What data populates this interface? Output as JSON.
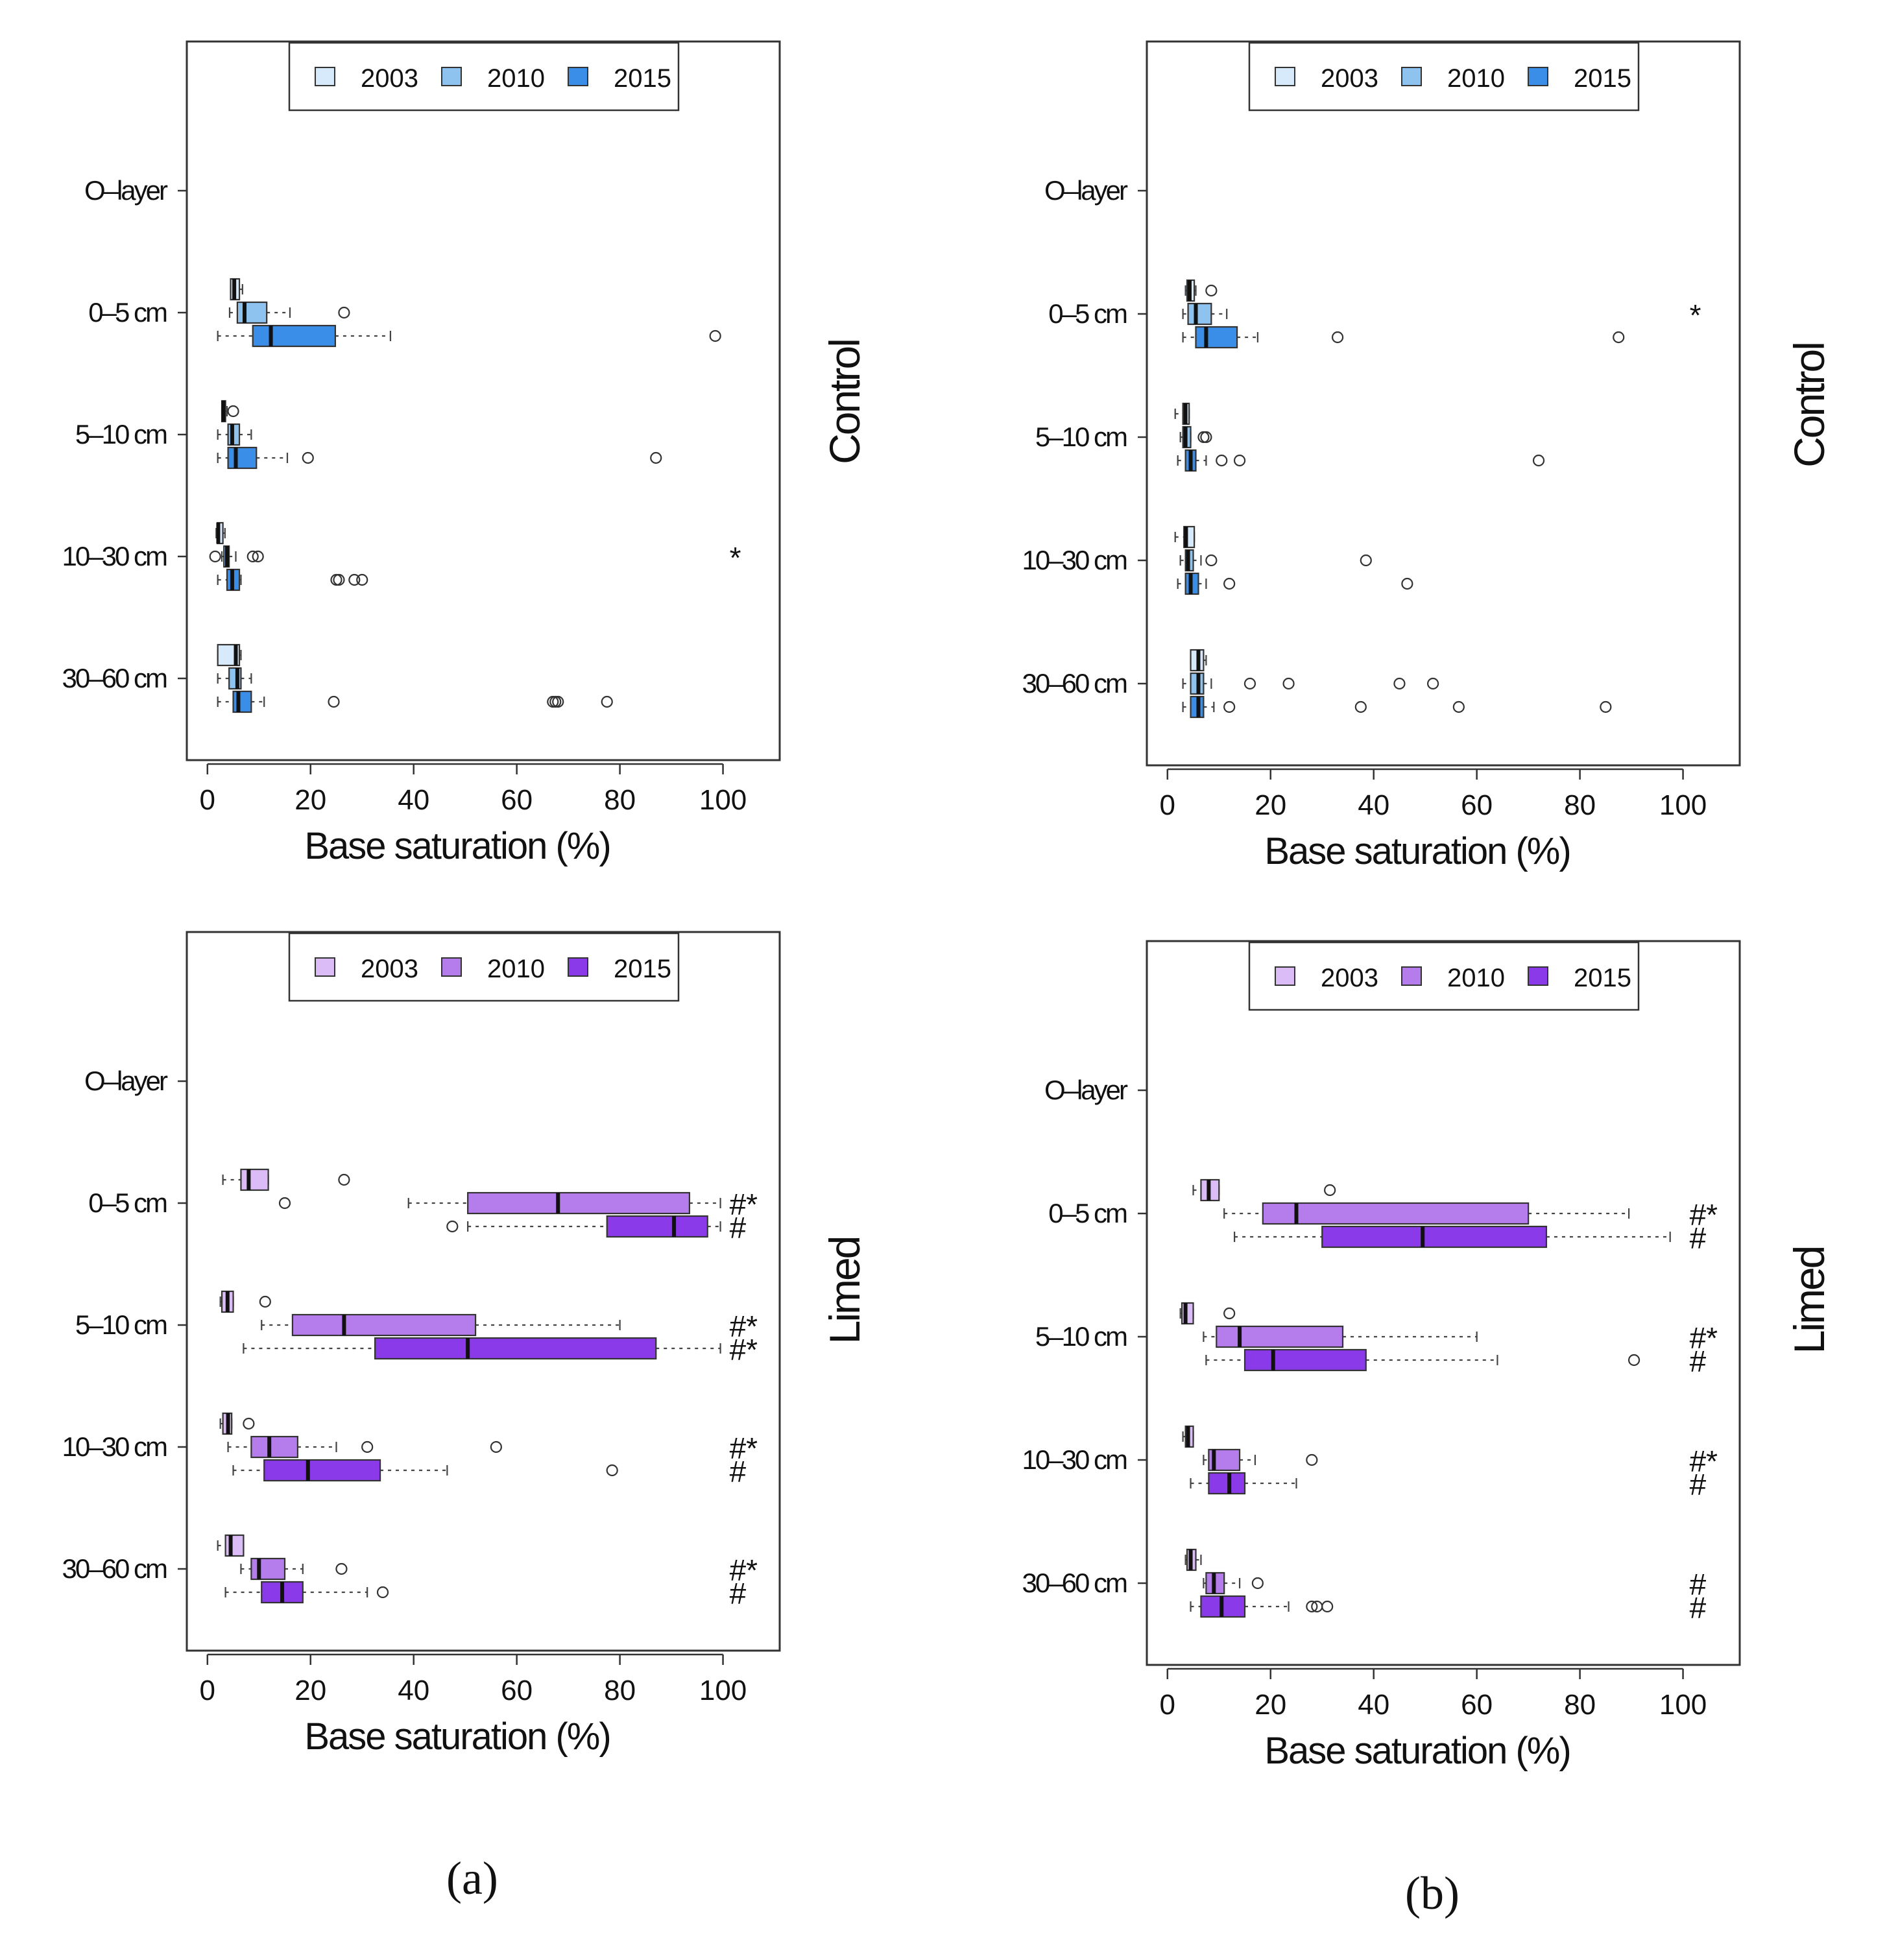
{
  "figure": {
    "panel_labels": [
      "(a)",
      "(b)"
    ],
    "colors": {
      "control": [
        "#d6eafb",
        "#8ec3f0",
        "#3b8ee8"
      ],
      "limed": [
        "#dcbcf6",
        "#b57cec",
        "#8a3ae8"
      ],
      "outline": "#333333"
    }
  },
  "chart_data": [
    {
      "type": "boxplot",
      "panel": "a",
      "treatment": "Control",
      "xlabel": "Base saturation (%)",
      "xlim": [
        -4,
        111
      ],
      "xticks": [
        "0",
        "20",
        "40",
        "60",
        "80",
        "100"
      ],
      "legend_position": "top",
      "series_names": [
        "2003",
        "2010",
        "2015"
      ],
      "categories": [
        "O–layer",
        "0–5 cm",
        "5–10 cm",
        "10–30 cm",
        "30–60 cm"
      ],
      "boxes": [
        {
          "category": "0–5 cm",
          "year": "2003",
          "whisker_low": 4.5,
          "q1": 4.5,
          "median": 5.2,
          "q3": 6.2,
          "whisker_high": 6.8,
          "outliers": []
        },
        {
          "category": "0–5 cm",
          "year": "2010",
          "whisker_low": 4.3,
          "q1": 5.8,
          "median": 7.2,
          "q3": 11.5,
          "whisker_high": 16,
          "outliers": [
            26.5
          ]
        },
        {
          "category": "0–5 cm",
          "year": "2015",
          "whisker_low": 2,
          "q1": 8.8,
          "median": 12.3,
          "q3": 24.8,
          "whisker_high": 35.5,
          "outliers": [
            98.5
          ]
        },
        {
          "category": "5–10 cm",
          "year": "2003",
          "whisker_low": 2.8,
          "q1": 2.8,
          "median": 3.1,
          "q3": 3.5,
          "whisker_high": 3.8,
          "outliers": [
            5
          ]
        },
        {
          "category": "5–10 cm",
          "year": "2010",
          "whisker_low": 2,
          "q1": 4,
          "median": 4.8,
          "q3": 6.2,
          "whisker_high": 8.5,
          "outliers": []
        },
        {
          "category": "5–10 cm",
          "year": "2015",
          "whisker_low": 2,
          "q1": 4,
          "median": 5.5,
          "q3": 9.5,
          "whisker_high": 15.5,
          "outliers": [
            19.5,
            87
          ]
        },
        {
          "category": "10–30 cm",
          "year": "2003",
          "whisker_low": 1.7,
          "q1": 1.9,
          "median": 2.1,
          "q3": 3,
          "whisker_high": 3.4,
          "outliers": []
        },
        {
          "category": "10–30 cm",
          "year": "2010",
          "whisker_low": 2.8,
          "q1": 3.2,
          "median": 3.8,
          "q3": 4.2,
          "whisker_high": 5.5,
          "outliers": [
            1.5,
            8.8,
            9.8
          ]
        },
        {
          "category": "10–30 cm",
          "year": "2015",
          "whisker_low": 2,
          "q1": 3.8,
          "median": 4.8,
          "q3": 6.2,
          "whisker_high": 6.5,
          "outliers": [
            25,
            25.5,
            28.5,
            30
          ]
        },
        {
          "category": "30–60 cm",
          "year": "2003",
          "whisker_low": 2,
          "q1": 2,
          "median": 5.5,
          "q3": 6.2,
          "whisker_high": 6.5,
          "outliers": []
        },
        {
          "category": "30–60 cm",
          "year": "2010",
          "whisker_low": 2,
          "q1": 4.2,
          "median": 5.8,
          "q3": 6.5,
          "whisker_high": 8.5,
          "outliers": []
        },
        {
          "category": "30–60 cm",
          "year": "2015",
          "whisker_low": 2,
          "q1": 5,
          "median": 6,
          "q3": 8.5,
          "whisker_high": 11,
          "outliers": [
            24.5,
            67,
            67.5,
            68,
            77.5
          ]
        }
      ],
      "annotations": [
        {
          "category": "10–30 cm",
          "year": "2010",
          "text": "*"
        }
      ]
    },
    {
      "type": "boxplot",
      "panel": "a",
      "treatment": "Limed",
      "xlabel": "Base saturation (%)",
      "xlim": [
        -4,
        111
      ],
      "xticks": [
        "0",
        "20",
        "40",
        "60",
        "80",
        "100"
      ],
      "legend_position": "top",
      "series_names": [
        "2003",
        "2010",
        "2015"
      ],
      "categories": [
        "O–layer",
        "0–5 cm",
        "5–10 cm",
        "10–30 cm",
        "30–60 cm"
      ],
      "boxes": [
        {
          "category": "0–5 cm",
          "year": "2003",
          "whisker_low": 3,
          "q1": 6.5,
          "median": 8,
          "q3": 11.8,
          "whisker_high": 11.8,
          "outliers": [
            26.5
          ]
        },
        {
          "category": "0–5 cm",
          "year": "2010",
          "whisker_low": 39,
          "q1": 50.5,
          "median": 68,
          "q3": 93.5,
          "whisker_high": 99.5,
          "outliers": [
            15
          ]
        },
        {
          "category": "0–5 cm",
          "year": "2015",
          "whisker_low": 50.5,
          "q1": 77.5,
          "median": 90.5,
          "q3": 97,
          "whisker_high": 99.5,
          "outliers": [
            47.5
          ]
        },
        {
          "category": "5–10 cm",
          "year": "2003",
          "whisker_low": 2.5,
          "q1": 2.8,
          "median": 3.9,
          "q3": 5,
          "whisker_high": 5,
          "outliers": [
            11.2
          ]
        },
        {
          "category": "5–10 cm",
          "year": "2010",
          "whisker_low": 10.5,
          "q1": 16.5,
          "median": 26.5,
          "q3": 52,
          "whisker_high": 80,
          "outliers": []
        },
        {
          "category": "5–10 cm",
          "year": "2015",
          "whisker_low": 7,
          "q1": 32.5,
          "median": 50.5,
          "q3": 87,
          "whisker_high": 99.5,
          "outliers": []
        },
        {
          "category": "10–30 cm",
          "year": "2003",
          "whisker_low": 2.5,
          "q1": 3,
          "median": 4,
          "q3": 4.7,
          "whisker_high": 4.7,
          "outliers": [
            8
          ]
        },
        {
          "category": "10–30 cm",
          "year": "2010",
          "whisker_low": 4,
          "q1": 8.5,
          "median": 12,
          "q3": 17.5,
          "whisker_high": 25,
          "outliers": [
            31,
            56
          ]
        },
        {
          "category": "10–30 cm",
          "year": "2015",
          "whisker_low": 5,
          "q1": 11,
          "median": 19.5,
          "q3": 33.5,
          "whisker_high": 46.5,
          "outliers": [
            78.5
          ]
        },
        {
          "category": "30–60 cm",
          "year": "2003",
          "whisker_low": 2,
          "q1": 3.5,
          "median": 4.5,
          "q3": 7,
          "whisker_high": 7,
          "outliers": []
        },
        {
          "category": "30–60 cm",
          "year": "2010",
          "whisker_low": 6.5,
          "q1": 8.5,
          "median": 10,
          "q3": 15,
          "whisker_high": 18.5,
          "outliers": [
            26
          ]
        },
        {
          "category": "30–60 cm",
          "year": "2015",
          "whisker_low": 3.5,
          "q1": 10.5,
          "median": 14.5,
          "q3": 18.5,
          "whisker_high": 31,
          "outliers": [
            34
          ]
        }
      ],
      "annotations": [
        {
          "category": "0–5 cm",
          "year": "2010",
          "text": "#*"
        },
        {
          "category": "0–5 cm",
          "year": "2015",
          "text": "#"
        },
        {
          "category": "5–10 cm",
          "year": "2010",
          "text": "#*"
        },
        {
          "category": "5–10 cm",
          "year": "2015",
          "text": "#*"
        },
        {
          "category": "10–30 cm",
          "year": "2010",
          "text": "#*"
        },
        {
          "category": "10–30 cm",
          "year": "2015",
          "text": "#"
        },
        {
          "category": "30–60 cm",
          "year": "2010",
          "text": "#*"
        },
        {
          "category": "30–60 cm",
          "year": "2015",
          "text": "#"
        }
      ]
    },
    {
      "type": "boxplot",
      "panel": "b",
      "treatment": "Control",
      "xlabel": "Base saturation (%)",
      "xlim": [
        -4,
        111
      ],
      "xticks": [
        "0",
        "20",
        "40",
        "60",
        "80",
        "100"
      ],
      "legend_position": "top",
      "series_names": [
        "2003",
        "2010",
        "2015"
      ],
      "categories": [
        "O–layer",
        "0–5 cm",
        "5–10 cm",
        "10–30 cm",
        "30–60 cm"
      ],
      "boxes": [
        {
          "category": "0–5 cm",
          "year": "2003",
          "whisker_low": 3.5,
          "q1": 3.8,
          "median": 4.3,
          "q3": 5.2,
          "whisker_high": 5.5,
          "outliers": [
            8.5
          ]
        },
        {
          "category": "0–5 cm",
          "year": "2010",
          "whisker_low": 3,
          "q1": 4,
          "median": 5.5,
          "q3": 8.5,
          "whisker_high": 11.5,
          "outliers": []
        },
        {
          "category": "0–5 cm",
          "year": "2015",
          "whisker_low": 3,
          "q1": 5.5,
          "median": 7.5,
          "q3": 13.5,
          "whisker_high": 17.5,
          "outliers": [
            33,
            87.5
          ]
        },
        {
          "category": "5–10 cm",
          "year": "2003",
          "whisker_low": 1.5,
          "q1": 3,
          "median": 3.5,
          "q3": 4.2,
          "whisker_high": 4.2,
          "outliers": []
        },
        {
          "category": "5–10 cm",
          "year": "2010",
          "whisker_low": 2.5,
          "q1": 3,
          "median": 3.5,
          "q3": 4.5,
          "whisker_high": 4.5,
          "outliers": [
            7,
            7.5
          ]
        },
        {
          "category": "5–10 cm",
          "year": "2015",
          "whisker_low": 2,
          "q1": 3.5,
          "median": 4.5,
          "q3": 5.5,
          "whisker_high": 7.5,
          "outliers": [
            10.5,
            14,
            72
          ]
        },
        {
          "category": "10–30 cm",
          "year": "2003",
          "whisker_low": 1.5,
          "q1": 3.2,
          "median": 3.6,
          "q3": 5.2,
          "whisker_high": 5.2,
          "outliers": []
        },
        {
          "category": "10–30 cm",
          "year": "2010",
          "whisker_low": 2.5,
          "q1": 3.5,
          "median": 4,
          "q3": 5,
          "whisker_high": 6.5,
          "outliers": [
            8.5,
            38.5
          ]
        },
        {
          "category": "10–30 cm",
          "year": "2015",
          "whisker_low": 2,
          "q1": 3.5,
          "median": 4.5,
          "q3": 6,
          "whisker_high": 7.5,
          "outliers": [
            12,
            46.5
          ]
        },
        {
          "category": "30–60 cm",
          "year": "2003",
          "whisker_low": 4.5,
          "q1": 4.5,
          "median": 6,
          "q3": 7,
          "whisker_high": 7.5,
          "outliers": []
        },
        {
          "category": "30–60 cm",
          "year": "2010",
          "whisker_low": 3,
          "q1": 4.5,
          "median": 6,
          "q3": 7,
          "whisker_high": 8.5,
          "outliers": [
            16,
            23.5,
            45,
            51.5
          ]
        },
        {
          "category": "30–60 cm",
          "year": "2015",
          "whisker_low": 3,
          "q1": 4.5,
          "median": 6,
          "q3": 7,
          "whisker_high": 9,
          "outliers": [
            12,
            37.5,
            56.5,
            85
          ]
        }
      ],
      "annotations": [
        {
          "category": "0–5 cm",
          "year": "2010",
          "text": "*"
        }
      ]
    },
    {
      "type": "boxplot",
      "panel": "b",
      "treatment": "Limed",
      "xlabel": "Base saturation (%)",
      "xlim": [
        -4,
        111
      ],
      "xticks": [
        "0",
        "20",
        "40",
        "60",
        "80",
        "100"
      ],
      "legend_position": "top",
      "series_names": [
        "2003",
        "2010",
        "2015"
      ],
      "categories": [
        "O–layer",
        "0–5 cm",
        "5–10 cm",
        "10–30 cm",
        "30–60 cm"
      ],
      "boxes": [
        {
          "category": "0–5 cm",
          "year": "2003",
          "whisker_low": 5,
          "q1": 6.5,
          "median": 8,
          "q3": 10,
          "whisker_high": 10,
          "outliers": [
            31.5
          ]
        },
        {
          "category": "0–5 cm",
          "year": "2010",
          "whisker_low": 11,
          "q1": 18.5,
          "median": 25,
          "q3": 70,
          "whisker_high": 89.5,
          "outliers": []
        },
        {
          "category": "0–5 cm",
          "year": "2015",
          "whisker_low": 13,
          "q1": 30,
          "median": 49.5,
          "q3": 73.5,
          "whisker_high": 97.5,
          "outliers": []
        },
        {
          "category": "5–10 cm",
          "year": "2003",
          "whisker_low": 2.5,
          "q1": 2.8,
          "median": 3.5,
          "q3": 5,
          "whisker_high": 5,
          "outliers": [
            12
          ]
        },
        {
          "category": "5–10 cm",
          "year": "2010",
          "whisker_low": 7,
          "q1": 9.5,
          "median": 14,
          "q3": 34,
          "whisker_high": 60,
          "outliers": []
        },
        {
          "category": "5–10 cm",
          "year": "2015",
          "whisker_low": 7.5,
          "q1": 15,
          "median": 20.5,
          "q3": 38.5,
          "whisker_high": 64,
          "outliers": [
            90.5
          ]
        },
        {
          "category": "10–30 cm",
          "year": "2003",
          "whisker_low": 3,
          "q1": 3.5,
          "median": 4,
          "q3": 5,
          "whisker_high": 5,
          "outliers": []
        },
        {
          "category": "10–30 cm",
          "year": "2010",
          "whisker_low": 7,
          "q1": 8,
          "median": 9,
          "q3": 14,
          "whisker_high": 17,
          "outliers": [
            28
          ]
        },
        {
          "category": "10–30 cm",
          "year": "2015",
          "whisker_low": 4.5,
          "q1": 8,
          "median": 12,
          "q3": 15,
          "whisker_high": 25,
          "outliers": []
        },
        {
          "category": "30–60 cm",
          "year": "2003",
          "whisker_low": 3.5,
          "q1": 3.8,
          "median": 4.5,
          "q3": 5.5,
          "whisker_high": 6.5,
          "outliers": []
        },
        {
          "category": "30–60 cm",
          "year": "2010",
          "whisker_low": 7,
          "q1": 7.5,
          "median": 9,
          "q3": 11,
          "whisker_high": 14,
          "outliers": [
            17.5
          ]
        },
        {
          "category": "30–60 cm",
          "year": "2015",
          "whisker_low": 4.5,
          "q1": 6.5,
          "median": 10.5,
          "q3": 15,
          "whisker_high": 23.5,
          "outliers": [
            28,
            29,
            31
          ]
        }
      ],
      "annotations": [
        {
          "category": "0–5 cm",
          "year": "2010",
          "text": "#*"
        },
        {
          "category": "0–5 cm",
          "year": "2015",
          "text": "#"
        },
        {
          "category": "5–10 cm",
          "year": "2010",
          "text": "#*"
        },
        {
          "category": "5–10 cm",
          "year": "2015",
          "text": "#"
        },
        {
          "category": "10–30 cm",
          "year": "2010",
          "text": "#*"
        },
        {
          "category": "10–30 cm",
          "year": "2015",
          "text": "#"
        },
        {
          "category": "30–60 cm",
          "year": "2010",
          "text": "#"
        },
        {
          "category": "30–60 cm",
          "year": "2015",
          "text": "#"
        }
      ]
    }
  ]
}
